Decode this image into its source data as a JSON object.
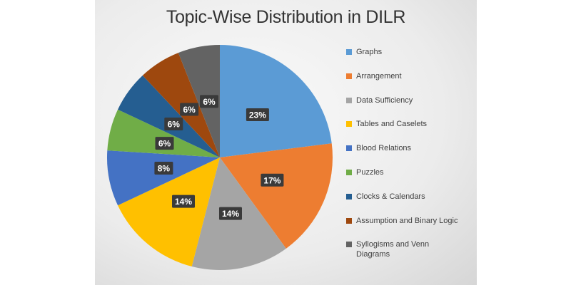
{
  "chart_data": {
    "type": "pie",
    "title": "Topic-Wise Distribution in DILR",
    "legend_position": "right",
    "slices": [
      {
        "label": "Graphs",
        "value": 23,
        "display": "23%",
        "color": "#5b9bd5"
      },
      {
        "label": "Arrangement",
        "value": 17,
        "display": "17%",
        "color": "#ed7d31"
      },
      {
        "label": "Data Sufficiency",
        "value": 14,
        "display": "14%",
        "color": "#a5a5a5"
      },
      {
        "label": "Tables and Caselets",
        "value": 14,
        "display": "14%",
        "color": "#ffc000"
      },
      {
        "label": "Blood Relations",
        "value": 8,
        "display": "8%",
        "color": "#4472c4"
      },
      {
        "label": "Puzzles",
        "value": 6,
        "display": "6%",
        "color": "#70ad47"
      },
      {
        "label": "Clocks & Calendars",
        "value": 6,
        "display": "6%",
        "color": "#255e91"
      },
      {
        "label": "Assumption and Binary Logic",
        "value": 6,
        "display": "6%",
        "color": "#9e480e"
      },
      {
        "label": "Syllogisms and Venn Diagrams",
        "value": 6,
        "display": "6%",
        "color": "#636363"
      }
    ]
  }
}
